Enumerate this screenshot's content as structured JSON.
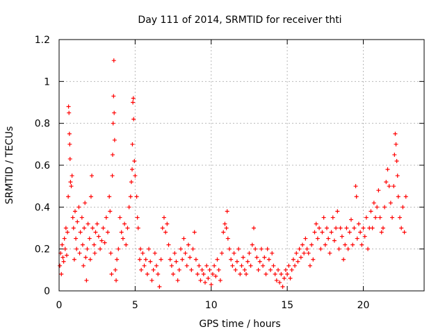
{
  "chart_data": {
    "type": "scatter",
    "title": "Day 111 of 2014, SRMTID for receiver thti",
    "xlabel": "GPS time / hours",
    "ylabel": "SRMTID / TECUs",
    "xlim": [
      0,
      24
    ],
    "ylim": [
      0,
      1.2
    ],
    "xticks": [
      0,
      5,
      10,
      15,
      20
    ],
    "xtick_labels": [
      "0",
      "5",
      "10",
      "15",
      "20"
    ],
    "yticks": [
      0,
      0.2,
      0.4,
      0.6,
      0.8,
      1,
      1.2
    ],
    "ytick_labels": [
      "0",
      "0.2",
      "0.4",
      "0.6",
      "0.8",
      "1",
      "1.2"
    ],
    "grid": true,
    "marker": "+",
    "series": [
      {
        "name": "SRMTID",
        "color": "#ff0000",
        "points": [
          [
            0.05,
            0.12
          ],
          [
            0.1,
            0.18
          ],
          [
            0.15,
            0.08
          ],
          [
            0.2,
            0.22
          ],
          [
            0.25,
            0.16
          ],
          [
            0.3,
            0.14
          ],
          [
            0.35,
            0.25
          ],
          [
            0.4,
            0.2
          ],
          [
            0.45,
            0.3
          ],
          [
            0.5,
            0.17
          ],
          [
            0.55,
            0.28
          ],
          [
            0.6,
            0.45
          ],
          [
            0.62,
            0.88
          ],
          [
            0.65,
            0.85
          ],
          [
            0.68,
            0.75
          ],
          [
            0.7,
            0.7
          ],
          [
            0.72,
            0.63
          ],
          [
            0.75,
            0.52
          ],
          [
            0.8,
            0.5
          ],
          [
            0.85,
            0.55
          ],
          [
            0.9,
            0.35
          ],
          [
            0.95,
            0.3
          ],
          [
            1.0,
            0.15
          ],
          [
            1.05,
            0.38
          ],
          [
            1.1,
            0.25
          ],
          [
            1.15,
            0.2
          ],
          [
            1.2,
            0.33
          ],
          [
            1.3,
            0.4
          ],
          [
            1.35,
            0.18
          ],
          [
            1.4,
            0.28
          ],
          [
            1.5,
            0.35
          ],
          [
            1.55,
            0.22
          ],
          [
            1.6,
            0.12
          ],
          [
            1.65,
            0.3
          ],
          [
            1.7,
            0.42
          ],
          [
            1.75,
            0.16
          ],
          [
            1.8,
            0.05
          ],
          [
            1.85,
            0.2
          ],
          [
            1.9,
            0.32
          ],
          [
            2.0,
            0.25
          ],
          [
            2.05,
            0.15
          ],
          [
            2.1,
            0.45
          ],
          [
            2.15,
            0.55
          ],
          [
            2.2,
            0.3
          ],
          [
            2.3,
            0.22
          ],
          [
            2.35,
            0.18
          ],
          [
            2.4,
            0.28
          ],
          [
            2.5,
            0.32
          ],
          [
            2.6,
            0.26
          ],
          [
            2.7,
            0.2
          ],
          [
            2.8,
            0.24
          ],
          [
            2.9,
            0.3
          ],
          [
            3.0,
            0.23
          ],
          [
            3.1,
            0.35
          ],
          [
            3.2,
            0.28
          ],
          [
            3.3,
            0.45
          ],
          [
            3.35,
            0.38
          ],
          [
            3.4,
            0.18
          ],
          [
            3.45,
            0.08
          ],
          [
            3.5,
            0.55
          ],
          [
            3.52,
            0.65
          ],
          [
            3.55,
            0.8
          ],
          [
            3.58,
            0.93
          ],
          [
            3.6,
            1.1
          ],
          [
            3.62,
            0.85
          ],
          [
            3.65,
            0.72
          ],
          [
            3.7,
            0.1
          ],
          [
            3.75,
            0.05
          ],
          [
            3.8,
            0.15
          ],
          [
            3.9,
            0.2
          ],
          [
            4.0,
            0.35
          ],
          [
            4.1,
            0.28
          ],
          [
            4.2,
            0.25
          ],
          [
            4.3,
            0.32
          ],
          [
            4.4,
            0.22
          ],
          [
            4.5,
            0.3
          ],
          [
            4.6,
            0.4
          ],
          [
            4.7,
            0.45
          ],
          [
            4.75,
            0.52
          ],
          [
            4.8,
            0.58
          ],
          [
            4.82,
            0.7
          ],
          [
            4.85,
            0.9
          ],
          [
            4.88,
            0.92
          ],
          [
            4.9,
            0.82
          ],
          [
            4.95,
            0.62
          ],
          [
            5.0,
            0.55
          ],
          [
            5.1,
            0.45
          ],
          [
            5.15,
            0.35
          ],
          [
            5.2,
            0.3
          ],
          [
            5.3,
            0.15
          ],
          [
            5.35,
            0.2
          ],
          [
            5.4,
            0.1
          ],
          [
            5.5,
            0.18
          ],
          [
            5.6,
            0.12
          ],
          [
            5.7,
            0.15
          ],
          [
            5.8,
            0.08
          ],
          [
            5.9,
            0.2
          ],
          [
            6.0,
            0.14
          ],
          [
            6.1,
            0.05
          ],
          [
            6.2,
            0.1
          ],
          [
            6.3,
            0.18
          ],
          [
            6.4,
            0.12
          ],
          [
            6.5,
            0.08
          ],
          [
            6.6,
            0.02
          ],
          [
            6.7,
            0.15
          ],
          [
            6.8,
            0.3
          ],
          [
            6.9,
            0.35
          ],
          [
            7.0,
            0.28
          ],
          [
            7.1,
            0.32
          ],
          [
            7.2,
            0.22
          ],
          [
            7.3,
            0.15
          ],
          [
            7.4,
            0.12
          ],
          [
            7.5,
            0.08
          ],
          [
            7.6,
            0.18
          ],
          [
            7.7,
            0.14
          ],
          [
            7.8,
            0.05
          ],
          [
            7.9,
            0.1
          ],
          [
            8.0,
            0.2
          ],
          [
            8.1,
            0.15
          ],
          [
            8.2,
            0.25
          ],
          [
            8.3,
            0.18
          ],
          [
            8.4,
            0.12
          ],
          [
            8.5,
            0.22
          ],
          [
            8.6,
            0.16
          ],
          [
            8.7,
            0.1
          ],
          [
            8.8,
            0.2
          ],
          [
            8.9,
            0.28
          ],
          [
            9.0,
            0.15
          ],
          [
            9.1,
            0.08
          ],
          [
            9.2,
            0.12
          ],
          [
            9.3,
            0.05
          ],
          [
            9.4,
            0.1
          ],
          [
            9.5,
            0.08
          ],
          [
            9.6,
            0.04
          ],
          [
            9.7,
            0.12
          ],
          [
            9.8,
            0.06
          ],
          [
            9.9,
            0.1
          ],
          [
            10.0,
            0.03
          ],
          [
            10.1,
            0.08
          ],
          [
            10.2,
            0.12
          ],
          [
            10.3,
            0.07
          ],
          [
            10.4,
            0.15
          ],
          [
            10.5,
            0.1
          ],
          [
            10.6,
            0.05
          ],
          [
            10.7,
            0.18
          ],
          [
            10.8,
            0.28
          ],
          [
            10.9,
            0.32
          ],
          [
            11.0,
            0.3
          ],
          [
            11.05,
            0.38
          ],
          [
            11.1,
            0.25
          ],
          [
            11.2,
            0.2
          ],
          [
            11.3,
            0.15
          ],
          [
            11.4,
            0.12
          ],
          [
            11.5,
            0.18
          ],
          [
            11.6,
            0.1
          ],
          [
            11.7,
            0.14
          ],
          [
            11.8,
            0.2
          ],
          [
            11.9,
            0.08
          ],
          [
            12.0,
            0.12
          ],
          [
            12.1,
            0.16
          ],
          [
            12.2,
            0.1
          ],
          [
            12.3,
            0.08
          ],
          [
            12.4,
            0.14
          ],
          [
            12.5,
            0.18
          ],
          [
            12.6,
            0.12
          ],
          [
            12.7,
            0.22
          ],
          [
            12.8,
            0.3
          ],
          [
            12.9,
            0.2
          ],
          [
            13.0,
            0.16
          ],
          [
            13.1,
            0.1
          ],
          [
            13.2,
            0.14
          ],
          [
            13.3,
            0.2
          ],
          [
            13.4,
            0.12
          ],
          [
            13.5,
            0.16
          ],
          [
            13.6,
            0.08
          ],
          [
            13.7,
            0.2
          ],
          [
            13.8,
            0.15
          ],
          [
            13.9,
            0.1
          ],
          [
            14.0,
            0.18
          ],
          [
            14.1,
            0.12
          ],
          [
            14.2,
            0.08
          ],
          [
            14.3,
            0.05
          ],
          [
            14.4,
            0.1
          ],
          [
            14.5,
            0.04
          ],
          [
            14.6,
            0.08
          ],
          [
            14.7,
            0.02
          ],
          [
            14.8,
            0.06
          ],
          [
            14.9,
            0.1
          ],
          [
            15.0,
            0.08
          ],
          [
            15.1,
            0.12
          ],
          [
            15.2,
            0.06
          ],
          [
            15.3,
            0.1
          ],
          [
            15.4,
            0.15
          ],
          [
            15.5,
            0.12
          ],
          [
            15.6,
            0.18
          ],
          [
            15.7,
            0.14
          ],
          [
            15.8,
            0.2
          ],
          [
            15.9,
            0.16
          ],
          [
            16.0,
            0.22
          ],
          [
            16.1,
            0.18
          ],
          [
            16.2,
            0.25
          ],
          [
            16.3,
            0.2
          ],
          [
            16.4,
            0.18
          ],
          [
            16.5,
            0.12
          ],
          [
            16.6,
            0.22
          ],
          [
            16.7,
            0.15
          ],
          [
            16.8,
            0.28
          ],
          [
            16.9,
            0.32
          ],
          [
            17.0,
            0.25
          ],
          [
            17.1,
            0.3
          ],
          [
            17.2,
            0.2
          ],
          [
            17.3,
            0.28
          ],
          [
            17.4,
            0.35
          ],
          [
            17.5,
            0.22
          ],
          [
            17.6,
            0.3
          ],
          [
            17.7,
            0.25
          ],
          [
            17.8,
            0.18
          ],
          [
            17.9,
            0.28
          ],
          [
            18.0,
            0.35
          ],
          [
            18.1,
            0.24
          ],
          [
            18.2,
            0.3
          ],
          [
            18.3,
            0.38
          ],
          [
            18.4,
            0.2
          ],
          [
            18.5,
            0.3
          ],
          [
            18.6,
            0.26
          ],
          [
            18.7,
            0.15
          ],
          [
            18.8,
            0.22
          ],
          [
            18.9,
            0.3
          ],
          [
            19.0,
            0.2
          ],
          [
            19.1,
            0.28
          ],
          [
            19.2,
            0.34
          ],
          [
            19.3,
            0.22
          ],
          [
            19.4,
            0.3
          ],
          [
            19.5,
            0.5
          ],
          [
            19.55,
            0.45
          ],
          [
            19.6,
            0.25
          ],
          [
            19.7,
            0.32
          ],
          [
            19.8,
            0.28
          ],
          [
            19.9,
            0.22
          ],
          [
            20.0,
            0.3
          ],
          [
            20.1,
            0.26
          ],
          [
            20.2,
            0.35
          ],
          [
            20.3,
            0.2
          ],
          [
            20.4,
            0.3
          ],
          [
            20.5,
            0.38
          ],
          [
            20.6,
            0.3
          ],
          [
            20.7,
            0.42
          ],
          [
            20.8,
            0.35
          ],
          [
            20.9,
            0.4
          ],
          [
            21.0,
            0.48
          ],
          [
            21.1,
            0.35
          ],
          [
            21.2,
            0.28
          ],
          [
            21.3,
            0.3
          ],
          [
            21.4,
            0.4
          ],
          [
            21.5,
            0.52
          ],
          [
            21.6,
            0.58
          ],
          [
            21.7,
            0.5
          ],
          [
            21.8,
            0.42
          ],
          [
            21.9,
            0.35
          ],
          [
            22.0,
            0.5
          ],
          [
            22.05,
            0.65
          ],
          [
            22.1,
            0.75
          ],
          [
            22.15,
            0.7
          ],
          [
            22.2,
            0.62
          ],
          [
            22.25,
            0.55
          ],
          [
            22.3,
            0.45
          ],
          [
            22.4,
            0.35
          ],
          [
            22.5,
            0.3
          ],
          [
            22.6,
            0.4
          ],
          [
            22.7,
            0.28
          ],
          [
            22.8,
            0.45
          ]
        ]
      }
    ]
  }
}
